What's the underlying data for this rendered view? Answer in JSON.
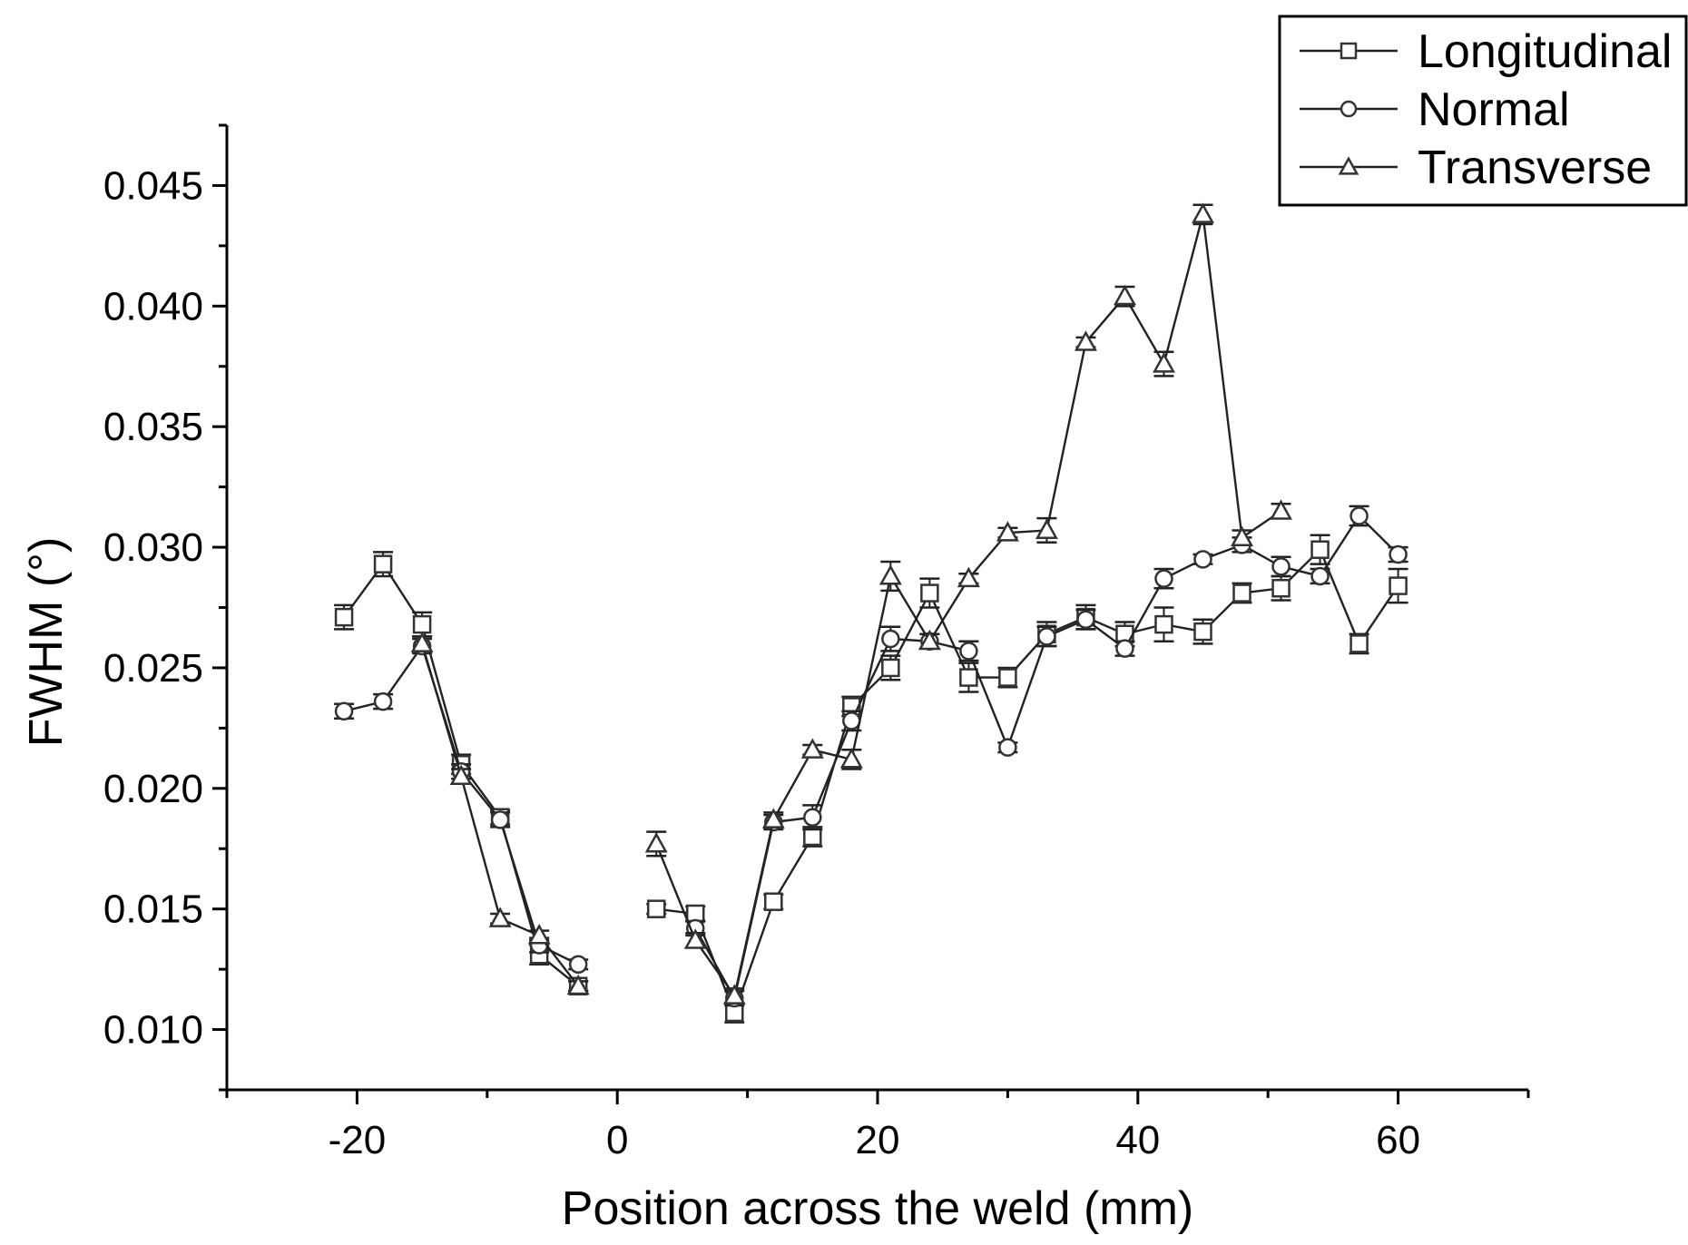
{
  "chart_data": {
    "type": "line",
    "title": "",
    "xlabel": "Position across the weld (mm)",
    "ylabel": "FWHM (°)",
    "xlim": [
      -30,
      70
    ],
    "ylim": [
      0.0075,
      0.0475
    ],
    "xticks": [
      -20,
      0,
      20,
      40,
      60
    ],
    "xtick_labels": [
      "-20",
      "0",
      "20",
      "40",
      "60"
    ],
    "yticks": [
      0.01,
      0.015,
      0.02,
      0.025,
      0.03,
      0.035,
      0.04,
      0.045
    ],
    "ytick_labels": [
      "0.010",
      "0.015",
      "0.020",
      "0.025",
      "0.030",
      "0.035",
      "0.040",
      "0.045"
    ],
    "grid": false,
    "legend_position": "top-right",
    "error_bars": true,
    "series": [
      {
        "name": "Longitudinal",
        "marker": "square",
        "segments": [
          {
            "x": [
              -21,
              -18,
              -15,
              -12,
              -9,
              -6,
              -3
            ],
            "y": [
              0.0271,
              0.0293,
              0.0268,
              0.021,
              0.0188,
              0.0131,
              0.0118
            ],
            "err": [
              0.0005,
              0.0005,
              0.0005,
              0.0004,
              0.0003,
              0.0004,
              0.0002
            ]
          },
          {
            "x": [
              3,
              6,
              9,
              12,
              15,
              18,
              21,
              24,
              27,
              30,
              33,
              36,
              39,
              42,
              45,
              48,
              51,
              54,
              57,
              60
            ],
            "y": [
              0.015,
              0.0148,
              0.0107,
              0.0153,
              0.018,
              0.0234,
              0.025,
              0.0281,
              0.0246,
              0.0246,
              0.0264,
              0.0271,
              0.0264,
              0.0268,
              0.0265,
              0.0281,
              0.0283,
              0.0299,
              0.026,
              0.0284
            ],
            "err": [
              0.0002,
              0.0003,
              0.0004,
              0.0003,
              0.0004,
              0.0004,
              0.0005,
              0.0006,
              0.0006,
              0.0004,
              0.0005,
              0.0005,
              0.0005,
              0.0007,
              0.0005,
              0.0004,
              0.0005,
              0.0006,
              0.0004,
              0.0007
            ]
          }
        ]
      },
      {
        "name": "Normal",
        "marker": "circle",
        "segments": [
          {
            "x": [
              -21,
              -18,
              -15,
              -12,
              -9,
              -6,
              -3
            ],
            "y": [
              0.0232,
              0.0236,
              0.0259,
              0.0207,
              0.0187,
              0.0135,
              0.0127
            ],
            "err": [
              0.0003,
              0.0003,
              0.0003,
              0.0003,
              0.0003,
              0.0003,
              0.0002
            ]
          },
          {
            "x": [
              6,
              9,
              12,
              15,
              18,
              21,
              24,
              27,
              30,
              33,
              36,
              39,
              42,
              45,
              48,
              51,
              54,
              57,
              60
            ],
            "y": [
              0.0142,
              0.0113,
              0.0186,
              0.0188,
              0.0228,
              0.0262,
              0.0261,
              0.0257,
              0.0217,
              0.0263,
              0.027,
              0.0258,
              0.0287,
              0.0295,
              0.0301,
              0.0292,
              0.0288,
              0.0313,
              0.0297
            ],
            "err": [
              0.0003,
              0.0003,
              0.0003,
              0.0005,
              0.0004,
              0.0005,
              0.0003,
              0.0004,
              0.0002,
              0.0004,
              0.0004,
              0.0003,
              0.0004,
              0.0002,
              0.0003,
              0.0004,
              0.0003,
              0.0004,
              0.0003
            ]
          }
        ]
      },
      {
        "name": "Transverse",
        "marker": "triangle",
        "segments": [
          {
            "x": [
              -15,
              -12,
              -9,
              -6,
              -3
            ],
            "y": [
              0.026,
              0.0205,
              0.0146,
              0.0139,
              0.0118
            ],
            "err": [
              0.0003,
              0.0003,
              0.0002,
              0.0002,
              0.0002
            ]
          },
          {
            "x": [
              3,
              6,
              9,
              12,
              15,
              18,
              21,
              24,
              27,
              30,
              33,
              36,
              39,
              42,
              45,
              48,
              51
            ],
            "y": [
              0.0177,
              0.0137,
              0.0114,
              0.0187,
              0.0216,
              0.0212,
              0.0288,
              0.0261,
              0.0287,
              0.0306,
              0.0307,
              0.0385,
              0.0404,
              0.0376,
              0.0438,
              0.0304,
              0.0315
            ],
            "err": [
              0.0005,
              0.0003,
              0.0003,
              0.0003,
              0.0002,
              0.0004,
              0.0006,
              0.0003,
              0.0002,
              0.0002,
              0.0005,
              0.0002,
              0.0004,
              0.0005,
              0.0004,
              0.0003,
              0.0003
            ]
          }
        ]
      }
    ]
  }
}
